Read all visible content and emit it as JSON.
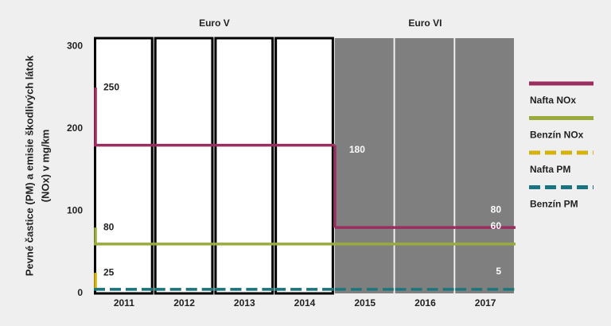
{
  "chart_data": {
    "type": "step-line",
    "y_label": [
      "Pevné častice (PM) a emisie škodlivých látok",
      "(NOx) v mg/km"
    ],
    "categories": [
      "2011",
      "2012",
      "2013",
      "2014",
      "2015",
      "2016",
      "2017"
    ],
    "groups": [
      {
        "label": "Euro V",
        "count": 4,
        "color": "#ffffff"
      },
      {
        "label": "Euro VI",
        "count": 3,
        "color": "#7f7f7f"
      }
    ],
    "ylim": [
      0,
      310
    ],
    "yticks": [
      0,
      100,
      200,
      300
    ],
    "series": [
      {
        "name": "Nafta NOx",
        "color": "#9b2d5f",
        "dashed": false,
        "previous": 250,
        "values": [
          180,
          180,
          180,
          180,
          80,
          80,
          80
        ],
        "value_labels": [
          null,
          null,
          null,
          "180",
          null,
          null,
          "80"
        ]
      },
      {
        "name": "Benzín NOx",
        "color": "#9aab3c",
        "dashed": false,
        "previous": 80,
        "values": [
          60,
          60,
          60,
          60,
          60,
          60,
          60
        ],
        "value_labels": [
          null,
          null,
          null,
          null,
          null,
          null,
          "60"
        ]
      },
      {
        "name": "Nafta PM",
        "color": "#d4b20c",
        "dashed": true,
        "previous": 25,
        "values": [
          5,
          5,
          5,
          5,
          5,
          5,
          5
        ],
        "value_labels": [
          null,
          null,
          null,
          null,
          null,
          null,
          "5"
        ]
      },
      {
        "name": "Benzín PM",
        "color": "#1a7383",
        "dashed": true,
        "values": [
          5,
          5,
          5,
          5,
          5,
          5,
          5
        ]
      }
    ]
  }
}
